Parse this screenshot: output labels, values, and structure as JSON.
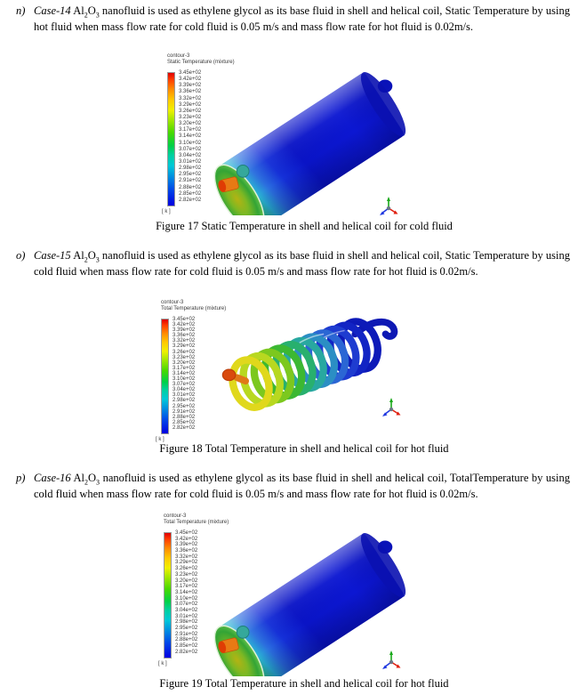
{
  "document": {
    "items": [
      {
        "marker": "n)",
        "case_label": "Case-14",
        "chem_pre": "Al",
        "chem_sub1": "2",
        "chem_mid": "O",
        "chem_sub2": "3",
        "body": "nanofluid is used as ethylene glycol as its base fluid in shell and helical coil, Static Temperature by using hot fluid when mass flow rate for cold fluid is 0.05 m/s and mass flow rate for hot fluid is 0.02m/s."
      },
      {
        "marker": "o)",
        "case_label": "Case-15",
        "chem_pre": "Al",
        "chem_sub1": "2",
        "chem_mid": "O",
        "chem_sub2": "3",
        "body": "nanofluid is used as ethylene glycol as its base fluid in shell and helical coil, Static Temperature by using cold fluid when mass flow rate for cold fluid is 0.05 m/s and mass flow rate for hot fluid is 0.02m/s."
      },
      {
        "marker": "p)",
        "case_label": "Case-16",
        "chem_pre": "Al",
        "chem_sub1": "2",
        "chem_mid": "O",
        "chem_sub2": "3",
        "body": "nanofluid is used as ethylene glycol as its base fluid in shell and helical coil, TotalTemperature by using cold fluid when mass flow rate for cold fluid is 0.05 m/s and mass flow rate for hot fluid is 0.02m/s."
      }
    ],
    "figures": [
      {
        "legend_title": "contour-3",
        "legend_subtitle": "Static Temperature (mixture)",
        "unit": "[ k ]",
        "values": [
          "3.45e+02",
          "3.42e+02",
          "3.39e+02",
          "3.36e+02",
          "3.32e+02",
          "3.29e+02",
          "3.26e+02",
          "3.23e+02",
          "3.20e+02",
          "3.17e+02",
          "3.14e+02",
          "3.10e+02",
          "3.07e+02",
          "3.04e+02",
          "3.01e+02",
          "2.98e+02",
          "2.95e+02",
          "2.91e+02",
          "2.88e+02",
          "2.85e+02",
          "2.82e+02"
        ],
        "caption": "Figure 17 Static Temperature in shell and helical coil for cold fluid"
      },
      {
        "legend_title": "contour-3",
        "legend_subtitle": "Total Temperature (mixture)",
        "unit": "[ k ]",
        "values": [
          "3.45e+02",
          "3.42e+02",
          "3.39e+02",
          "3.36e+02",
          "3.32e+02",
          "3.29e+02",
          "3.26e+02",
          "3.23e+02",
          "3.20e+02",
          "3.17e+02",
          "3.14e+02",
          "3.10e+02",
          "3.07e+02",
          "3.04e+02",
          "3.01e+02",
          "2.98e+02",
          "2.95e+02",
          "2.91e+02",
          "2.88e+02",
          "2.85e+02",
          "2.82e+02"
        ],
        "caption": "Figure 18 Total Temperature in shell and helical coil for hot fluid"
      },
      {
        "legend_title": "contour-3",
        "legend_subtitle": "Total Temperature (mixture)",
        "unit": "[ k ]",
        "values": [
          "3.45e+02",
          "3.42e+02",
          "3.39e+02",
          "3.36e+02",
          "3.32e+02",
          "3.29e+02",
          "3.26e+02",
          "3.23e+02",
          "3.20e+02",
          "3.17e+02",
          "3.14e+02",
          "3.10e+02",
          "3.07e+02",
          "3.04e+02",
          "3.01e+02",
          "2.98e+02",
          "2.95e+02",
          "2.91e+02",
          "2.88e+02",
          "2.85e+02",
          "2.82e+02"
        ],
        "caption": "Figure 19 Total Temperature in shell and helical coil for hot fluid"
      }
    ],
    "colors": {
      "legend_max": "#e00000",
      "legend_min": "#0000e0",
      "axis_x": "#e02010",
      "axis_y": "#18a818",
      "axis_z": "#2038e0"
    }
  }
}
